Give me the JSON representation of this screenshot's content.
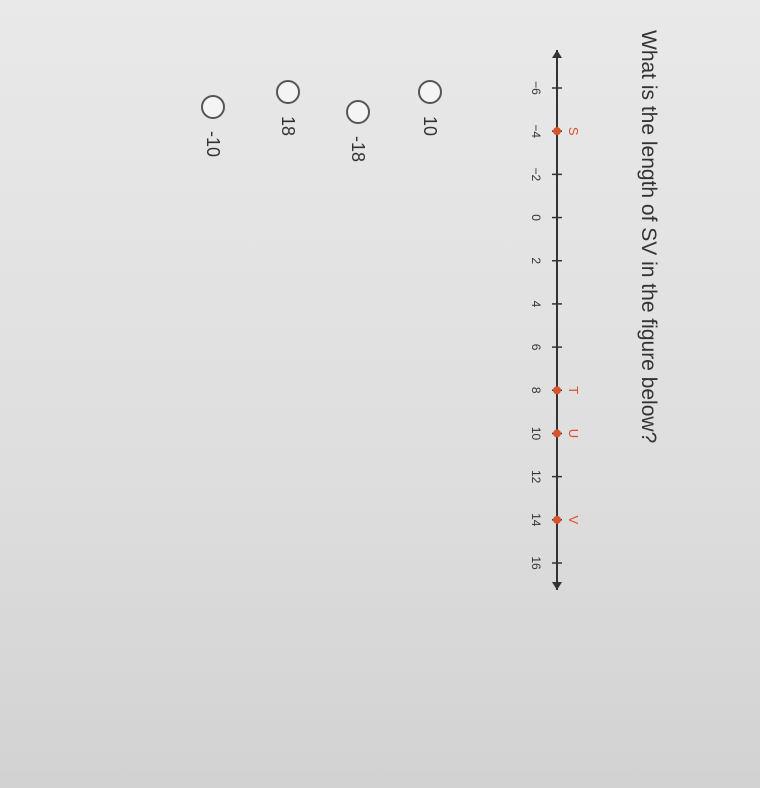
{
  "question": "What is the length of SV in the figure below?",
  "number_line": {
    "min": -6,
    "max": 16,
    "step": 2,
    "tick_labels": [
      "−6",
      "−4",
      "−2",
      "0",
      "2",
      "4",
      "6",
      "8",
      "10",
      "12",
      "14",
      "16"
    ],
    "points": [
      {
        "label": "S",
        "value": -4
      },
      {
        "label": "T",
        "value": 8
      },
      {
        "label": "U",
        "value": 10
      },
      {
        "label": "V",
        "value": 14
      }
    ],
    "point_color": "#d9532b"
  },
  "options": [
    {
      "label": "10"
    },
    {
      "label": "-18"
    },
    {
      "label": "18"
    },
    {
      "label": "-10"
    }
  ]
}
